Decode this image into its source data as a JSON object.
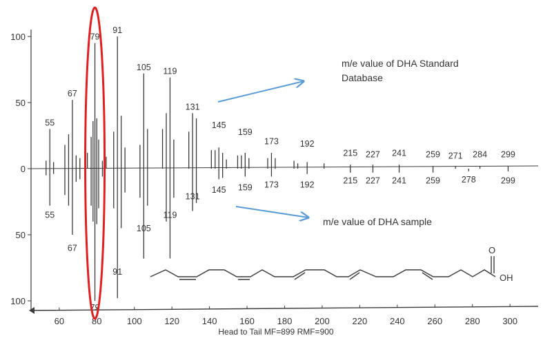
{
  "chart_data": {
    "type": "bar",
    "title": "",
    "xlabel": "",
    "ylabel": "",
    "footer": "Head to Tail MF=899 RMF=900",
    "xlim": [
      45,
      315
    ],
    "ylim": [
      -100,
      100
    ],
    "x_ticks": [
      60,
      80,
      100,
      120,
      140,
      160,
      180,
      200,
      220,
      240,
      260,
      280,
      300
    ],
    "y_ticks": [
      {
        "value": 100,
        "label": "100"
      },
      {
        "value": 50,
        "label": "50"
      },
      {
        "value": 0,
        "label": "0"
      },
      {
        "value": -50,
        "label": "50"
      },
      {
        "value": -100,
        "label": "100"
      }
    ],
    "series": [
      {
        "name": "",
        "direction": "up",
        "x": [
          53,
          55,
          57,
          63,
          65,
          67,
          69,
          71,
          75,
          77,
          78,
          79,
          80,
          81,
          83,
          85,
          89,
          91,
          93,
          95,
          103,
          105,
          107,
          115,
          117,
          119,
          121,
          129,
          131,
          133,
          141,
          143,
          145,
          147,
          149,
          155,
          157,
          159,
          161,
          171,
          173,
          175,
          185,
          187,
          192,
          201,
          215,
          227,
          241,
          259,
          271,
          284,
          299
        ],
        "values": [
          6,
          30,
          5,
          18,
          26,
          52,
          10,
          8,
          12,
          24,
          36,
          95,
          38,
          22,
          6,
          9,
          28,
          100,
          40,
          16,
          18,
          72,
          30,
          30,
          42,
          69,
          22,
          28,
          42,
          38,
          14,
          14,
          16,
          12,
          7,
          10,
          10,
          12,
          8,
          8,
          12,
          8,
          6,
          4,
          5,
          4,
          3,
          3,
          3,
          2,
          2,
          2,
          2
        ]
      },
      {
        "name": "",
        "direction": "down",
        "x": [
          53,
          55,
          57,
          63,
          65,
          67,
          69,
          71,
          77,
          78,
          79,
          80,
          81,
          83,
          89,
          91,
          93,
          95,
          103,
          105,
          107,
          117,
          119,
          121,
          131,
          133,
          145,
          147,
          159,
          173,
          192,
          215,
          227,
          241,
          259,
          278,
          299
        ],
        "values": [
          5,
          28,
          4,
          20,
          28,
          50,
          10,
          8,
          28,
          40,
          100,
          42,
          30,
          6,
          30,
          98,
          45,
          18,
          22,
          68,
          28,
          40,
          68,
          22,
          32,
          26,
          8,
          7,
          6,
          6,
          4,
          3,
          3,
          3,
          3,
          2,
          2
        ]
      }
    ],
    "peak_labels": [
      {
        "text": "55",
        "x": 55,
        "y": 30
      },
      {
        "text": "67",
        "x": 67,
        "y": 52
      },
      {
        "text": "79",
        "x": 79,
        "y": 95
      },
      {
        "text": "91",
        "x": 91,
        "y": 100
      },
      {
        "text": "105",
        "x": 105,
        "y": 72
      },
      {
        "text": "119",
        "x": 119,
        "y": 69
      },
      {
        "text": "131",
        "x": 131,
        "y": 42
      },
      {
        "text": "145",
        "x": 145,
        "y": 28
      },
      {
        "text": "159",
        "x": 159,
        "y": 23
      },
      {
        "text": "173",
        "x": 173,
        "y": 16
      },
      {
        "text": "192",
        "x": 192,
        "y": 14
      },
      {
        "text": "215",
        "x": 215,
        "y": 7
      },
      {
        "text": "227",
        "x": 227,
        "y": 6
      },
      {
        "text": "241",
        "x": 241,
        "y": 7
      },
      {
        "text": "259",
        "x": 259,
        "y": 6
      },
      {
        "text": "271",
        "x": 271,
        "y": 5
      },
      {
        "text": "284",
        "x": 284,
        "y": 6
      },
      {
        "text": "299",
        "x": 299,
        "y": 6
      },
      {
        "text": "145",
        "x": 145,
        "y": -11
      },
      {
        "text": "159",
        "x": 159,
        "y": -9
      },
      {
        "text": "173",
        "x": 173,
        "y": -7
      },
      {
        "text": "192",
        "x": 192,
        "y": -7
      },
      {
        "text": "215",
        "x": 215,
        "y": -4
      },
      {
        "text": "227",
        "x": 227,
        "y": -4
      },
      {
        "text": "241",
        "x": 241,
        "y": -4
      },
      {
        "text": "259",
        "x": 259,
        "y": -4
      },
      {
        "text": "278",
        "x": 278,
        "y": -3
      },
      {
        "text": "299",
        "x": 299,
        "y": -4
      },
      {
        "text": "131",
        "x": 131,
        "y": -16
      },
      {
        "text": "55",
        "x": 55,
        "y": -30
      },
      {
        "text": "119",
        "x": 119,
        "y": -30
      },
      {
        "text": "105",
        "x": 105,
        "y": -40
      },
      {
        "text": "67",
        "x": 67,
        "y": -55
      },
      {
        "text": "91",
        "x": 91,
        "y": -73
      },
      {
        "text": "79",
        "x": 79,
        "y": -100
      }
    ],
    "annotations": [
      {
        "text_lines": [
          "m/e value of DHA Standard",
          "Database"
        ],
        "points_to": "upper spectrum"
      },
      {
        "text_lines": [
          "m/e value of DHA sample"
        ],
        "points_to": "lower spectrum"
      }
    ],
    "highlight": {
      "shape": "ellipse",
      "around_x": 79,
      "color": "#e02020"
    },
    "structure": {
      "atom_labels": [
        "O",
        "OH"
      ]
    },
    "colors": {
      "peaks": "#3a3a3a",
      "axis": "#3a3a3a",
      "arrow": "#5b9bd5",
      "highlight": "#e02020"
    }
  }
}
